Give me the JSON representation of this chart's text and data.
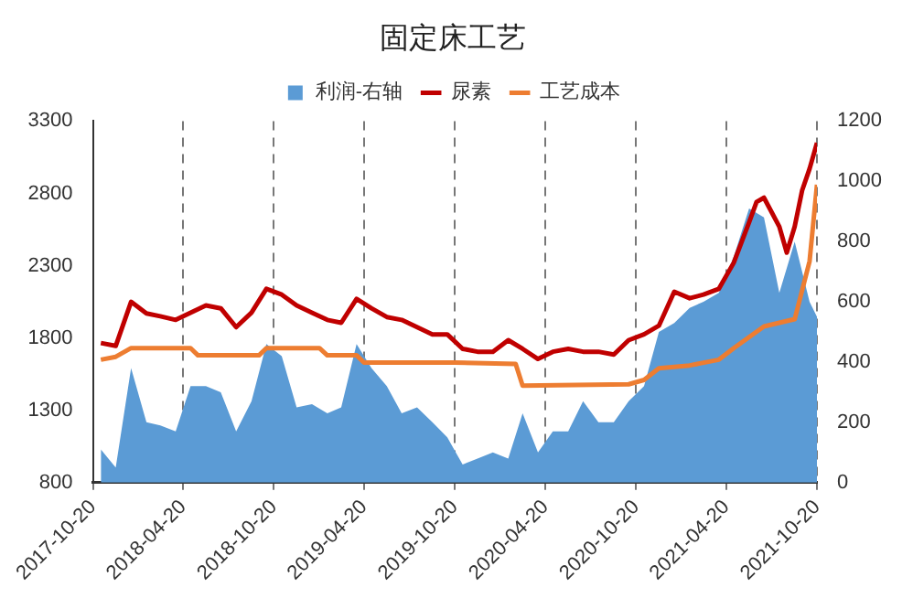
{
  "chart_data": {
    "type": "line",
    "title": "固定床工艺",
    "legend": "top",
    "grid": "x",
    "marker": "none",
    "xlim": [
      "2017-10-20",
      "2021-10-20"
    ],
    "xticks": [
      {
        "value": "2017-10-20",
        "label": "2017-10-20"
      },
      {
        "value": "2018-04-20",
        "label": "2018-04-20"
      },
      {
        "value": "2018-10-20",
        "label": "2018-10-20"
      },
      {
        "value": "2019-04-20",
        "label": "2019-04-20"
      },
      {
        "value": "2019-10-20",
        "label": "2019-10-20"
      },
      {
        "value": "2020-04-20",
        "label": "2020-04-20"
      },
      {
        "value": "2020-10-20",
        "label": "2020-10-20"
      },
      {
        "value": "2021-04-20",
        "label": "2021-04-20"
      },
      {
        "value": "2021-10-20",
        "label": "2021-10-20"
      }
    ],
    "ylim": [
      800,
      3300
    ],
    "yticks": [
      800,
      1300,
      1800,
      2300,
      2800,
      3300
    ],
    "y2lim": [
      0,
      1200
    ],
    "y2ticks": [
      0,
      200,
      400,
      600,
      800,
      1000,
      1200
    ],
    "series": [
      {
        "name": "利润-右轴",
        "type": "area",
        "axis": "y2",
        "color": "#5b9bd5",
        "x": [
          "2017-11-05",
          "2017-12-05",
          "2018-01-05",
          "2018-02-05",
          "2018-03-05",
          "2018-04-05",
          "2018-05-05",
          "2018-06-05",
          "2018-07-05",
          "2018-08-05",
          "2018-09-05",
          "2018-10-05",
          "2018-11-05",
          "2018-12-05",
          "2019-01-05",
          "2019-02-05",
          "2019-03-05",
          "2019-04-05",
          "2019-05-05",
          "2019-06-05",
          "2019-07-05",
          "2019-08-05",
          "2019-09-05",
          "2019-10-05",
          "2019-11-05",
          "2019-12-05",
          "2020-01-05",
          "2020-02-05",
          "2020-03-05",
          "2020-04-05",
          "2020-05-05",
          "2020-06-05",
          "2020-07-05",
          "2020-08-05",
          "2020-09-05",
          "2020-10-05",
          "2020-11-05",
          "2020-12-05",
          "2021-01-05",
          "2021-02-05",
          "2021-03-05",
          "2021-04-05",
          "2021-05-05",
          "2021-06-05",
          "2021-07-05",
          "2021-08-05",
          "2021-09-05",
          "2021-10-05",
          "2021-10-20"
        ],
        "values": [
          110,
          50,
          380,
          200,
          190,
          170,
          320,
          320,
          300,
          170,
          270,
          460,
          420,
          250,
          260,
          230,
          250,
          460,
          380,
          320,
          230,
          250,
          200,
          150,
          60,
          80,
          100,
          80,
          230,
          100,
          170,
          170,
          270,
          200,
          200,
          270,
          320,
          500,
          530,
          580,
          600,
          630,
          750,
          910,
          880,
          630,
          800,
          600,
          550
        ]
      },
      {
        "name": "尿素",
        "color": "#c00000",
        "x": [
          "2017-11-05",
          "2017-12-05",
          "2018-01-05",
          "2018-02-05",
          "2018-03-05",
          "2018-04-05",
          "2018-05-05",
          "2018-06-05",
          "2018-07-05",
          "2018-08-05",
          "2018-09-05",
          "2018-10-05",
          "2018-11-05",
          "2018-12-05",
          "2019-01-05",
          "2019-02-05",
          "2019-03-05",
          "2019-04-05",
          "2019-05-05",
          "2019-06-05",
          "2019-07-05",
          "2019-08-05",
          "2019-09-05",
          "2019-10-05",
          "2019-11-05",
          "2019-12-05",
          "2020-01-05",
          "2020-02-05",
          "2020-03-05",
          "2020-04-05",
          "2020-05-05",
          "2020-06-05",
          "2020-07-05",
          "2020-08-05",
          "2020-09-05",
          "2020-10-05",
          "2020-11-05",
          "2020-12-05",
          "2021-01-05",
          "2021-02-05",
          "2021-03-05",
          "2021-04-05",
          "2021-05-05",
          "2021-06-05",
          "2021-06-20",
          "2021-07-05",
          "2021-08-05",
          "2021-08-20",
          "2021-09-05",
          "2021-09-20",
          "2021-10-05",
          "2021-10-20"
        ],
        "values": [
          1765,
          1745,
          2050,
          1970,
          1950,
          1925,
          1975,
          2025,
          2005,
          1875,
          1975,
          2140,
          2100,
          2025,
          1975,
          1925,
          1905,
          2070,
          2005,
          1945,
          1925,
          1875,
          1825,
          1825,
          1725,
          1705,
          1705,
          1785,
          1725,
          1655,
          1705,
          1725,
          1705,
          1705,
          1685,
          1785,
          1825,
          1885,
          2120,
          2075,
          2100,
          2140,
          2320,
          2600,
          2740,
          2770,
          2570,
          2390,
          2570,
          2820,
          2970,
          3150
        ]
      },
      {
        "name": "工艺成本",
        "color": "#ed7d31",
        "x": [
          "2017-11-05",
          "2017-12-05",
          "2018-01-05",
          "2018-05-05",
          "2018-05-20",
          "2018-09-20",
          "2018-10-05",
          "2019-01-20",
          "2019-02-05",
          "2019-04-05",
          "2019-04-20",
          "2019-10-20",
          "2020-02-20",
          "2020-03-05",
          "2020-10-05",
          "2020-11-05",
          "2020-12-05",
          "2021-02-05",
          "2021-04-05",
          "2021-05-05",
          "2021-07-05",
          "2021-09-05",
          "2021-10-05",
          "2021-10-20"
        ],
        "values": [
          1650,
          1670,
          1730,
          1730,
          1680,
          1680,
          1730,
          1730,
          1680,
          1680,
          1630,
          1630,
          1620,
          1470,
          1480,
          1510,
          1590,
          1610,
          1650,
          1730,
          1880,
          1930,
          2330,
          2860
        ]
      }
    ]
  }
}
